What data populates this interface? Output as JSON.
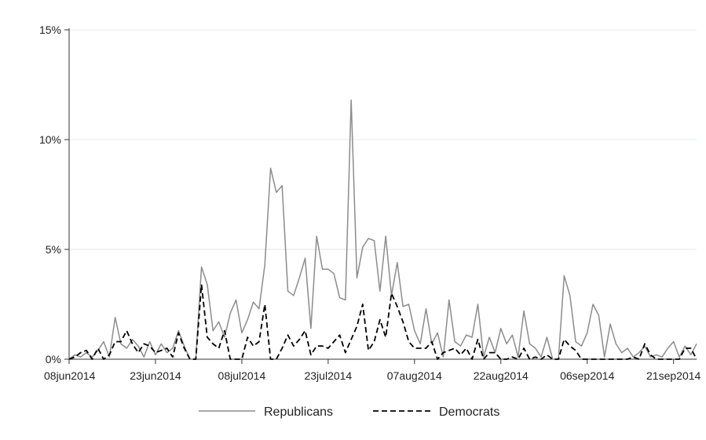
{
  "chart_data": {
    "type": "line",
    "title": "",
    "xlabel": "",
    "ylabel": "",
    "x_type": "date",
    "xlim": [
      "2014-06-08",
      "2014-09-25"
    ],
    "ylim": [
      0,
      15
    ],
    "grid": true,
    "legend_position": "bottom",
    "y_ticks": [
      {
        "value": 0,
        "label": "0%"
      },
      {
        "value": 5,
        "label": "5%"
      },
      {
        "value": 10,
        "label": "10%"
      },
      {
        "value": 15,
        "label": "15%"
      }
    ],
    "x_ticks": [
      {
        "value": "2014-06-08",
        "label": "08jun2014"
      },
      {
        "value": "2014-06-23",
        "label": "23jun2014"
      },
      {
        "value": "2014-07-08",
        "label": "08jul2014"
      },
      {
        "value": "2014-07-23",
        "label": "23jul2014"
      },
      {
        "value": "2014-08-07",
        "label": "07aug2014"
      },
      {
        "value": "2014-08-22",
        "label": "22aug2014"
      },
      {
        "value": "2014-09-06",
        "label": "06sep2014"
      },
      {
        "value": "2014-09-21",
        "label": "21sep2014"
      }
    ],
    "series": [
      {
        "name": "Republicans",
        "color": "#8c8c8c",
        "dash": "solid",
        "points": [
          [
            "2014-06-08",
            0
          ],
          [
            "2014-06-09",
            0.2
          ],
          [
            "2014-06-10",
            0.1
          ],
          [
            "2014-06-11",
            0.3
          ],
          [
            "2014-06-12",
            0.1
          ],
          [
            "2014-06-13",
            0.4
          ],
          [
            "2014-06-14",
            0.8
          ],
          [
            "2014-06-15",
            0.1
          ],
          [
            "2014-06-16",
            1.9
          ],
          [
            "2014-06-17",
            0.7
          ],
          [
            "2014-06-18",
            0.5
          ],
          [
            "2014-06-19",
            0.9
          ],
          [
            "2014-06-20",
            0.6
          ],
          [
            "2014-06-21",
            0.1
          ],
          [
            "2014-06-22",
            0.8
          ],
          [
            "2014-06-23",
            0.2
          ],
          [
            "2014-06-24",
            0.7
          ],
          [
            "2014-06-25",
            0.3
          ],
          [
            "2014-06-26",
            0.5
          ],
          [
            "2014-06-27",
            1.3
          ],
          [
            "2014-06-28",
            0.6
          ],
          [
            "2014-06-29",
            0
          ],
          [
            "2014-06-30",
            0
          ],
          [
            "2014-07-01",
            4.2
          ],
          [
            "2014-07-02",
            3.4
          ],
          [
            "2014-07-03",
            1.3
          ],
          [
            "2014-07-04",
            1.7
          ],
          [
            "2014-07-05",
            1.0
          ],
          [
            "2014-07-06",
            2.1
          ],
          [
            "2014-07-07",
            2.7
          ],
          [
            "2014-07-08",
            1.2
          ],
          [
            "2014-07-09",
            1.8
          ],
          [
            "2014-07-10",
            2.6
          ],
          [
            "2014-07-11",
            2.3
          ],
          [
            "2014-07-12",
            4.3
          ],
          [
            "2014-07-13",
            8.7
          ],
          [
            "2014-07-14",
            7.6
          ],
          [
            "2014-07-15",
            7.9
          ],
          [
            "2014-07-16",
            3.1
          ],
          [
            "2014-07-17",
            2.9
          ],
          [
            "2014-07-18",
            3.7
          ],
          [
            "2014-07-19",
            4.6
          ],
          [
            "2014-07-20",
            1.4
          ],
          [
            "2014-07-21",
            5.6
          ],
          [
            "2014-07-22",
            4.1
          ],
          [
            "2014-07-23",
            4.1
          ],
          [
            "2014-07-24",
            3.9
          ],
          [
            "2014-07-25",
            2.8
          ],
          [
            "2014-07-26",
            2.7
          ],
          [
            "2014-07-27",
            11.8
          ],
          [
            "2014-07-28",
            3.7
          ],
          [
            "2014-07-29",
            5.1
          ],
          [
            "2014-07-30",
            5.5
          ],
          [
            "2014-07-31",
            5.4
          ],
          [
            "2014-08-01",
            3.1
          ],
          [
            "2014-08-02",
            5.6
          ],
          [
            "2014-08-03",
            2.9
          ],
          [
            "2014-08-04",
            4.4
          ],
          [
            "2014-08-05",
            2.4
          ],
          [
            "2014-08-06",
            2.5
          ],
          [
            "2014-08-07",
            1.3
          ],
          [
            "2014-08-08",
            0.7
          ],
          [
            "2014-08-09",
            2.3
          ],
          [
            "2014-08-10",
            0.7
          ],
          [
            "2014-08-11",
            1.2
          ],
          [
            "2014-08-12",
            0.1
          ],
          [
            "2014-08-13",
            2.7
          ],
          [
            "2014-08-14",
            0.8
          ],
          [
            "2014-08-15",
            0.6
          ],
          [
            "2014-08-16",
            1.1
          ],
          [
            "2014-08-17",
            1.0
          ],
          [
            "2014-08-18",
            2.5
          ],
          [
            "2014-08-19",
            0.1
          ],
          [
            "2014-08-20",
            1.0
          ],
          [
            "2014-08-21",
            0.3
          ],
          [
            "2014-08-22",
            1.4
          ],
          [
            "2014-08-23",
            0.7
          ],
          [
            "2014-08-24",
            1.1
          ],
          [
            "2014-08-25",
            0.1
          ],
          [
            "2014-08-26",
            2.2
          ],
          [
            "2014-08-27",
            0.7
          ],
          [
            "2014-08-28",
            0.5
          ],
          [
            "2014-08-29",
            0.1
          ],
          [
            "2014-08-30",
            1.0
          ],
          [
            "2014-08-31",
            0
          ],
          [
            "2014-09-01",
            0
          ],
          [
            "2014-09-02",
            3.8
          ],
          [
            "2014-09-03",
            2.9
          ],
          [
            "2014-09-04",
            0.8
          ],
          [
            "2014-09-05",
            0.6
          ],
          [
            "2014-09-06",
            1.2
          ],
          [
            "2014-09-07",
            2.5
          ],
          [
            "2014-09-08",
            2.0
          ],
          [
            "2014-09-09",
            0.1
          ],
          [
            "2014-09-10",
            1.6
          ],
          [
            "2014-09-11",
            0.7
          ],
          [
            "2014-09-12",
            0.3
          ],
          [
            "2014-09-13",
            0.5
          ],
          [
            "2014-09-14",
            0.1
          ],
          [
            "2014-09-15",
            0.3
          ],
          [
            "2014-09-16",
            0.6
          ],
          [
            "2014-09-17",
            0.1
          ],
          [
            "2014-09-18",
            0.2
          ],
          [
            "2014-09-19",
            0.1
          ],
          [
            "2014-09-20",
            0.5
          ],
          [
            "2014-09-21",
            0.8
          ],
          [
            "2014-09-22",
            0.1
          ],
          [
            "2014-09-23",
            0.6
          ],
          [
            "2014-09-24",
            0.2
          ],
          [
            "2014-09-25",
            0.7
          ]
        ]
      },
      {
        "name": "Democrats",
        "color": "#000000",
        "dash": "dashed",
        "points": [
          [
            "2014-06-08",
            0
          ],
          [
            "2014-06-09",
            0.1
          ],
          [
            "2014-06-10",
            0.3
          ],
          [
            "2014-06-11",
            0.4
          ],
          [
            "2014-06-12",
            0
          ],
          [
            "2014-06-13",
            0.5
          ],
          [
            "2014-06-14",
            0
          ],
          [
            "2014-06-15",
            0.2
          ],
          [
            "2014-06-16",
            0.8
          ],
          [
            "2014-06-17",
            0.8
          ],
          [
            "2014-06-18",
            1.3
          ],
          [
            "2014-06-19",
            0.7
          ],
          [
            "2014-06-20",
            0.3
          ],
          [
            "2014-06-21",
            0.7
          ],
          [
            "2014-06-22",
            0.6
          ],
          [
            "2014-06-23",
            0.3
          ],
          [
            "2014-06-24",
            0.4
          ],
          [
            "2014-06-25",
            0.5
          ],
          [
            "2014-06-26",
            0.1
          ],
          [
            "2014-06-27",
            1.2
          ],
          [
            "2014-06-28",
            0.5
          ],
          [
            "2014-06-29",
            0
          ],
          [
            "2014-06-30",
            0
          ],
          [
            "2014-07-01",
            3.4
          ],
          [
            "2014-07-02",
            1.0
          ],
          [
            "2014-07-03",
            0.7
          ],
          [
            "2014-07-04",
            0.5
          ],
          [
            "2014-07-05",
            1.3
          ],
          [
            "2014-07-06",
            0
          ],
          [
            "2014-07-07",
            0
          ],
          [
            "2014-07-08",
            0
          ],
          [
            "2014-07-09",
            1.0
          ],
          [
            "2014-07-10",
            0.6
          ],
          [
            "2014-07-11",
            0.8
          ],
          [
            "2014-07-12",
            2.5
          ],
          [
            "2014-07-13",
            0
          ],
          [
            "2014-07-14",
            0
          ],
          [
            "2014-07-15",
            0.5
          ],
          [
            "2014-07-16",
            1.1
          ],
          [
            "2014-07-17",
            0.6
          ],
          [
            "2014-07-18",
            0.9
          ],
          [
            "2014-07-19",
            1.3
          ],
          [
            "2014-07-20",
            0.2
          ],
          [
            "2014-07-21",
            0.6
          ],
          [
            "2014-07-22",
            0.6
          ],
          [
            "2014-07-23",
            0.5
          ],
          [
            "2014-07-24",
            0.8
          ],
          [
            "2014-07-25",
            1.1
          ],
          [
            "2014-07-26",
            0.3
          ],
          [
            "2014-07-27",
            0.9
          ],
          [
            "2014-07-28",
            1.5
          ],
          [
            "2014-07-29",
            2.5
          ],
          [
            "2014-07-30",
            0.4
          ],
          [
            "2014-07-31",
            0.8
          ],
          [
            "2014-08-01",
            1.8
          ],
          [
            "2014-08-02",
            1.0
          ],
          [
            "2014-08-03",
            3.0
          ],
          [
            "2014-08-04",
            2.4
          ],
          [
            "2014-08-05",
            1.7
          ],
          [
            "2014-08-06",
            0.8
          ],
          [
            "2014-08-07",
            0.5
          ],
          [
            "2014-08-08",
            0.5
          ],
          [
            "2014-08-09",
            0.5
          ],
          [
            "2014-08-10",
            0.8
          ],
          [
            "2014-08-11",
            0
          ],
          [
            "2014-08-12",
            0.3
          ],
          [
            "2014-08-13",
            0.4
          ],
          [
            "2014-08-14",
            0.5
          ],
          [
            "2014-08-15",
            0.2
          ],
          [
            "2014-08-16",
            0.5
          ],
          [
            "2014-08-17",
            0
          ],
          [
            "2014-08-18",
            0.9
          ],
          [
            "2014-08-19",
            0
          ],
          [
            "2014-08-20",
            0.3
          ],
          [
            "2014-08-21",
            0.3
          ],
          [
            "2014-08-22",
            0
          ],
          [
            "2014-08-23",
            0
          ],
          [
            "2014-08-24",
            0.1
          ],
          [
            "2014-08-25",
            0
          ],
          [
            "2014-08-26",
            0.5
          ],
          [
            "2014-08-27",
            0
          ],
          [
            "2014-08-28",
            0.1
          ],
          [
            "2014-08-29",
            0
          ],
          [
            "2014-08-30",
            0.2
          ],
          [
            "2014-08-31",
            0
          ],
          [
            "2014-09-01",
            0
          ],
          [
            "2014-09-02",
            0.9
          ],
          [
            "2014-09-03",
            0.6
          ],
          [
            "2014-09-04",
            0.4
          ],
          [
            "2014-09-05",
            0
          ],
          [
            "2014-09-06",
            0
          ],
          [
            "2014-09-07",
            0
          ],
          [
            "2014-09-08",
            0
          ],
          [
            "2014-09-09",
            0
          ],
          [
            "2014-09-10",
            0
          ],
          [
            "2014-09-11",
            0
          ],
          [
            "2014-09-12",
            0
          ],
          [
            "2014-09-13",
            0
          ],
          [
            "2014-09-14",
            0.1
          ],
          [
            "2014-09-15",
            0
          ],
          [
            "2014-09-16",
            0.7
          ],
          [
            "2014-09-17",
            0.2
          ],
          [
            "2014-09-18",
            0
          ],
          [
            "2014-09-19",
            0
          ],
          [
            "2014-09-20",
            0
          ],
          [
            "2014-09-21",
            0
          ],
          [
            "2014-09-22",
            0
          ],
          [
            "2014-09-23",
            0.5
          ],
          [
            "2014-09-24",
            0.5
          ],
          [
            "2014-09-25",
            0
          ]
        ]
      }
    ]
  }
}
